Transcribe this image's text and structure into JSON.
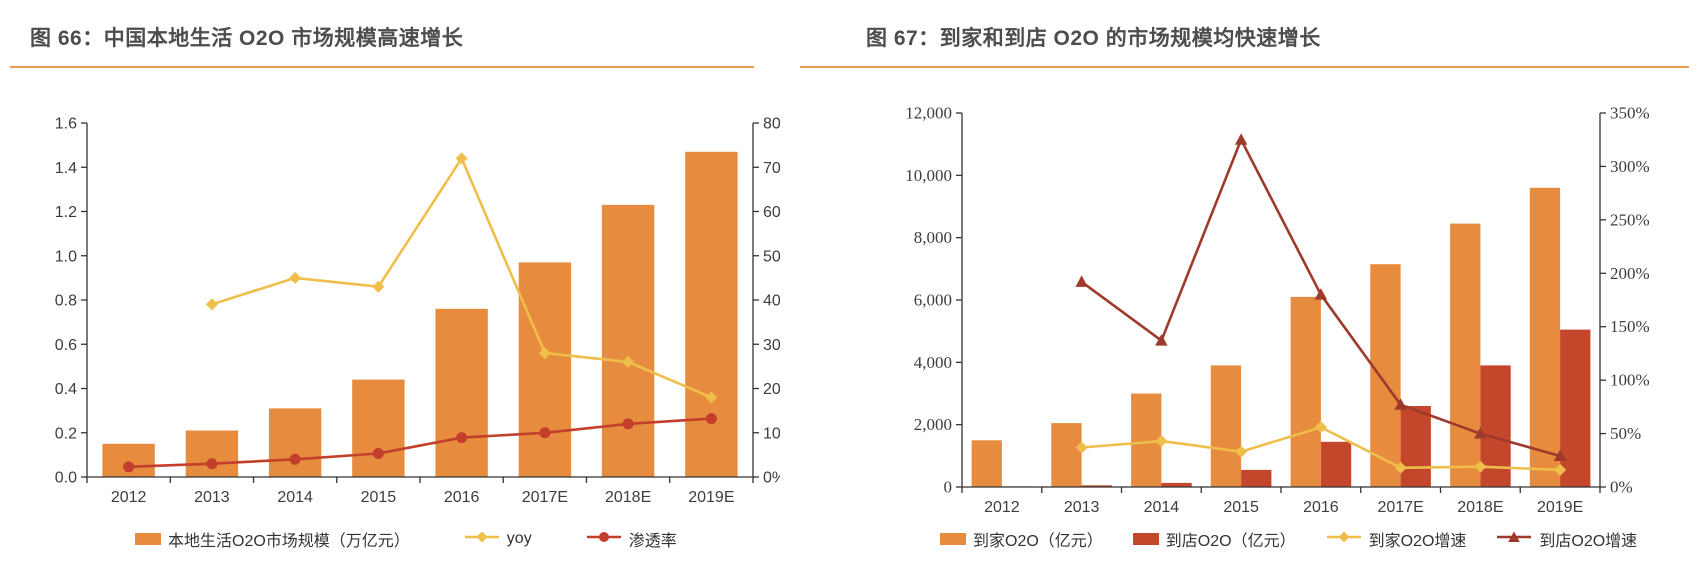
{
  "page": {
    "background": "#ffffff"
  },
  "colors": {
    "orange": "#E78C3E",
    "brick_red": "#C5472B",
    "yellow": "#EFBE4B",
    "red": "#C33F2C",
    "dark_brick": "#9E3A2B",
    "title_text": "#4D4D4D",
    "title_rule": "#ED9A52",
    "axis_line": "#333333"
  },
  "chart_data": [
    {
      "id": "fig66",
      "type": "combo",
      "title": "图 66：中国本地生活 O2O 市场规模高速增长",
      "categories": [
        "2012",
        "2013",
        "2014",
        "2015",
        "2016",
        "2017E",
        "2018E",
        "2019E"
      ],
      "left_axis": {
        "min": 0,
        "max": 1.6,
        "step": 0.2,
        "format": "dec1"
      },
      "right_axis": {
        "min": 0,
        "max": 80,
        "step": 10,
        "format": "pct"
      },
      "grid": false,
      "legend_position": "bottom",
      "series": [
        {
          "name": "本地生活O2O市场规模（万亿元）",
          "type": "bar",
          "axis": "left",
          "color": "#E78C3E",
          "values": [
            0.15,
            0.21,
            0.31,
            0.44,
            0.76,
            0.97,
            1.23,
            1.47
          ]
        },
        {
          "name": "yoy",
          "type": "line",
          "marker": "diamond",
          "axis": "right",
          "color": "#EFBE4B",
          "unit": "%",
          "values": [
            null,
            39,
            45,
            43,
            72,
            28,
            26,
            18
          ]
        },
        {
          "name": "渗透率",
          "type": "line",
          "marker": "circle",
          "axis": "right",
          "color": "#C33F2C",
          "unit": "%",
          "values": [
            2.3,
            3.0,
            4.0,
            5.3,
            8.9,
            10.0,
            12.0,
            13.2
          ]
        }
      ]
    },
    {
      "id": "fig67",
      "type": "combo",
      "title": "图 67：到家和到店 O2O 的市场规模均快速增长",
      "categories": [
        "2012",
        "2013",
        "2014",
        "2015",
        "2016",
        "2017E",
        "2018E",
        "2019E"
      ],
      "left_axis": {
        "min": 0,
        "max": 12000,
        "step": 2000,
        "format": "comma"
      },
      "right_axis": {
        "min": 0,
        "max": 350,
        "step": 50,
        "format": "pct"
      },
      "grid": false,
      "legend_position": "bottom",
      "series": [
        {
          "name": "到家O2O（亿元）",
          "type": "bar",
          "axis": "left",
          "color": "#E78C3E",
          "values": [
            1500,
            2050,
            3000,
            3900,
            6100,
            7150,
            8450,
            9600
          ]
        },
        {
          "name": "到店O2O（亿元）",
          "type": "bar",
          "axis": "left",
          "color": "#C5472B",
          "values": [
            20,
            55,
            130,
            550,
            1450,
            2600,
            3900,
            5050
          ]
        },
        {
          "name": "到家O2O增速",
          "type": "line",
          "marker": "diamond",
          "axis": "right",
          "color": "#EFBE4B",
          "unit": "%",
          "values": [
            null,
            37,
            43,
            33,
            56,
            18,
            19,
            16
          ]
        },
        {
          "name": "到店O2O增速",
          "type": "line",
          "marker": "triangle",
          "axis": "right",
          "color": "#9E3A2B",
          "unit": "%",
          "values": [
            null,
            192,
            137,
            325,
            180,
            77,
            50,
            29
          ]
        }
      ]
    }
  ]
}
